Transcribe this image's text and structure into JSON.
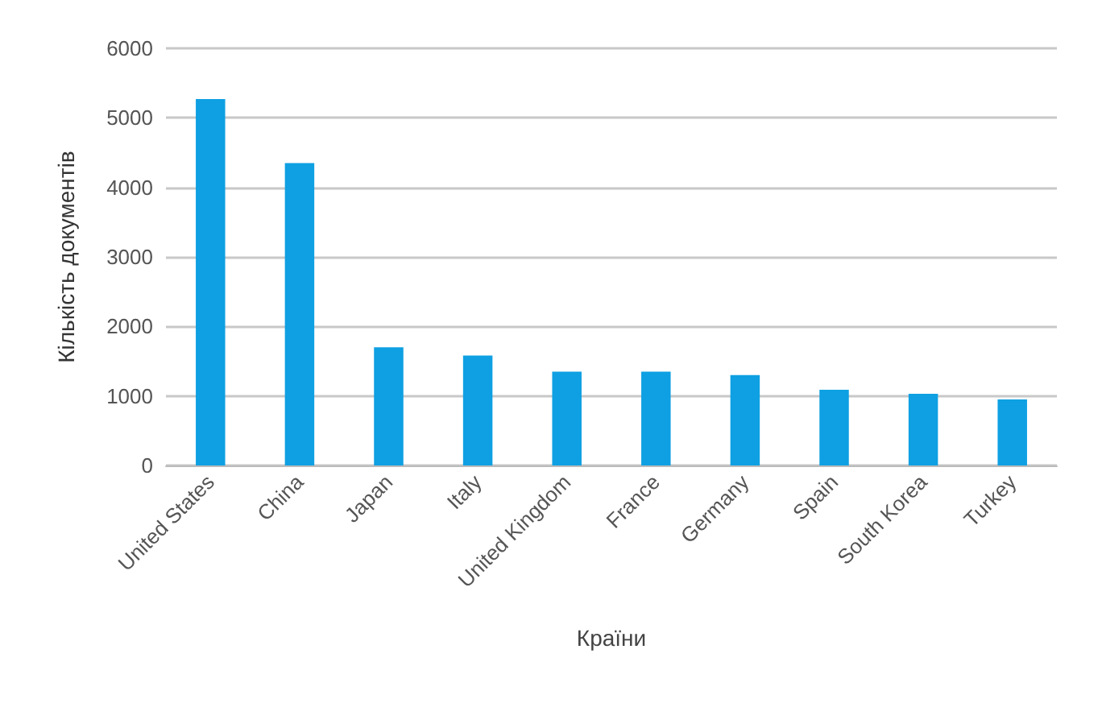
{
  "chart_data": {
    "type": "bar",
    "xlabel": "Країни",
    "ylabel": "Кількість документів",
    "categories": [
      "United States",
      "China",
      "Japan",
      "Italy",
      "United Kingdom",
      "France",
      "Germany",
      "Spain",
      "South Korea",
      "Turkey"
    ],
    "values": [
      5270,
      4350,
      1700,
      1580,
      1350,
      1350,
      1300,
      1090,
      1030,
      950
    ],
    "color": "#0ea0e2",
    "ylim": [
      0,
      6000
    ],
    "yticks": [
      0,
      1000,
      2000,
      3000,
      4000,
      5000,
      6000
    ],
    "grid": "y"
  }
}
